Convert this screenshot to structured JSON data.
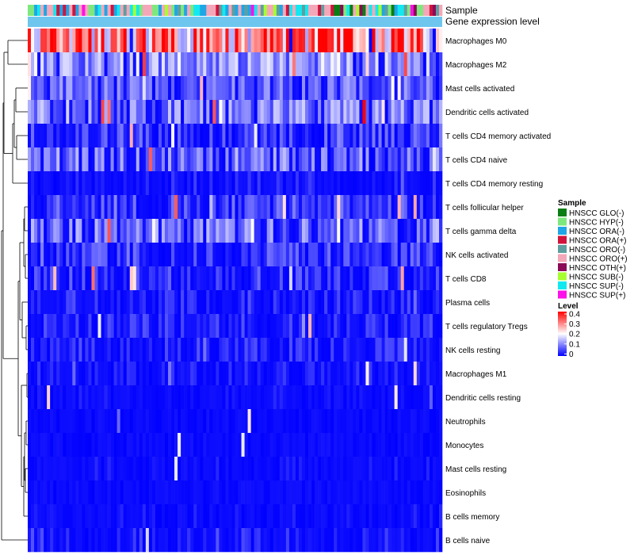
{
  "chart_data": {
    "type": "heatmap",
    "title": "",
    "top_annotation_labels": [
      "Sample",
      "Gene expression level"
    ],
    "rows": [
      "Macrophages M0",
      "Macrophages M2",
      "Mast cells activated",
      "Dendritic cells activated",
      "T cells CD4 memory activated",
      "T cells CD4 naive",
      "T cells CD4 memory resting",
      "T cells follicular helper",
      "T cells gamma delta",
      "NK cells activated",
      "T cells CD8",
      "Plasma cells",
      "T cells regulatory  Tregs",
      "NK cells resting",
      "Macrophages M1",
      "Dendritic cells resting",
      "Neutrophils",
      "Monocytes",
      "Mast cells resting",
      "Eosinophils",
      "B cells memory",
      "B cells naive"
    ],
    "row_mean_level": [
      0.27,
      0.12,
      0.08,
      0.1,
      0.06,
      0.09,
      0.03,
      0.06,
      0.09,
      0.06,
      0.05,
      0.04,
      0.04,
      0.04,
      0.03,
      0.02,
      0.01,
      0.01,
      0.02,
      0.01,
      0.02,
      0.04
    ],
    "row_sparsity": [
      0.02,
      0.08,
      0.25,
      0.18,
      0.45,
      0.3,
      0.72,
      0.45,
      0.25,
      0.42,
      0.52,
      0.55,
      0.55,
      0.55,
      0.65,
      0.8,
      0.88,
      0.88,
      0.8,
      0.9,
      0.85,
      0.75
    ],
    "n_samples": 130,
    "sample_groups": [
      {
        "name": "HNSCC GLO(-)",
        "color": "#0a7d14"
      },
      {
        "name": "HNSCC HYP(-)",
        "color": "#7de87d"
      },
      {
        "name": "HNSCC ORA(-)",
        "color": "#1ea6e6"
      },
      {
        "name": "HNSCC ORA(+)",
        "color": "#d1143c"
      },
      {
        "name": "HNSCC ORO(-)",
        "color": "#5f9ea0"
      },
      {
        "name": "HNSCC ORO(+)",
        "color": "#f4a7b9"
      },
      {
        "name": "HNSCC OTH(+)",
        "color": "#8b0a57"
      },
      {
        "name": "HNSCC SUB(-)",
        "color": "#a6ff2e"
      },
      {
        "name": "HNSCC SUP(-)",
        "color": "#12e8f0"
      },
      {
        "name": "HNSCC SUP(+)",
        "color": "#ff10e8"
      }
    ],
    "gene_expression_bar_color": "#6ec6ef",
    "legend": {
      "sample_title": "Sample",
      "level_title": "Level",
      "level_ticks": [
        "0.4",
        "0.3",
        "0.2",
        "0.1",
        "0"
      ],
      "level_min": 0,
      "level_max": 0.4,
      "colors": {
        "low": "#0000ff",
        "mid": "#ffffff",
        "high": "#ff0000"
      }
    },
    "dendrogram": "rows clustered; B cells naive splits from the root first",
    "seed": 20240
  }
}
